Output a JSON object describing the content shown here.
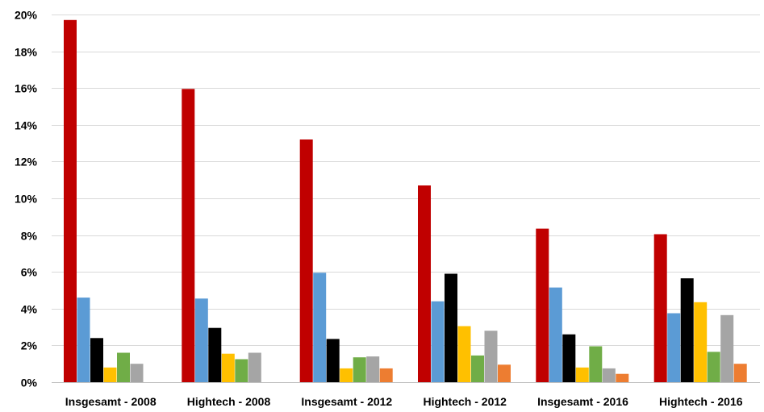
{
  "chart_data": {
    "type": "bar",
    "title": "",
    "xlabel": "",
    "ylabel": "",
    "ylim": [
      0,
      20
    ],
    "yticks": [
      0,
      2,
      4,
      6,
      8,
      10,
      12,
      14,
      16,
      18,
      20
    ],
    "ytick_suffix": "%",
    "grid": true,
    "legend": "none",
    "categories": [
      "Insgesamt - 2008",
      "Hightech - 2008",
      "Insgesamt - 2012",
      "Hightech - 2012",
      "Insgesamt - 2016",
      "Hightech - 2016"
    ],
    "series": [
      {
        "color": "#c00000",
        "values": [
          19.7,
          15.95,
          13.2,
          10.7,
          8.35,
          8.05
        ]
      },
      {
        "color": "#5b9bd5",
        "values": [
          4.6,
          4.55,
          5.95,
          4.4,
          5.15,
          3.75
        ]
      },
      {
        "color": "#000000",
        "values": [
          2.4,
          2.95,
          2.35,
          5.9,
          2.6,
          5.65
        ]
      },
      {
        "color": "#ffc000",
        "values": [
          0.8,
          1.55,
          0.75,
          3.05,
          0.8,
          4.35
        ]
      },
      {
        "color": "#70ad47",
        "values": [
          1.6,
          1.25,
          1.35,
          1.45,
          1.95,
          1.65
        ]
      },
      {
        "color": "#a5a5a5",
        "values": [
          1.0,
          1.6,
          1.4,
          2.8,
          0.75,
          3.65
        ]
      },
      {
        "color": "#ed7d31",
        "values": [
          0.0,
          0.0,
          0.75,
          0.95,
          0.45,
          1.0
        ]
      }
    ]
  }
}
